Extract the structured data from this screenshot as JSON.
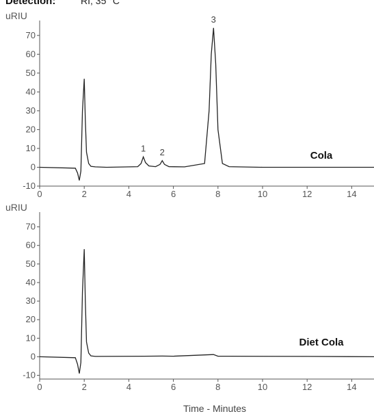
{
  "header": {
    "detection_label": "Detection:",
    "detection_value": "RI, 35 °C"
  },
  "chart_data": [
    {
      "type": "line",
      "sample_label": "Cola",
      "ylabel": "uRIU",
      "ylim": [
        -10,
        75
      ],
      "y_ticks": [
        -10,
        0,
        10,
        20,
        30,
        40,
        50,
        60,
        70
      ],
      "xlim": [
        0,
        15
      ],
      "x_ticks": [
        0,
        2,
        4,
        6,
        8,
        10,
        12,
        14
      ],
      "peak_labels": [
        {
          "label": "1",
          "x": 4.65,
          "y": 5.5
        },
        {
          "label": "2",
          "x": 5.5,
          "y": 3.5
        },
        {
          "label": "3",
          "x": 7.8,
          "y": 74
        }
      ],
      "series": [
        {
          "x": [
            0,
            1.6,
            1.7,
            1.78,
            1.85,
            1.92,
            2.0,
            2.05,
            2.1,
            2.2,
            2.3,
            2.5,
            3,
            4.4,
            4.55,
            4.65,
            4.75,
            4.9,
            5.2,
            5.4,
            5.5,
            5.6,
            5.8,
            6.5,
            7.4,
            7.6,
            7.7,
            7.8,
            7.9,
            8.0,
            8.2,
            8.5,
            10,
            15
          ],
          "y": [
            0,
            -0.5,
            -3,
            -7,
            -2,
            30,
            47,
            25,
            8,
            2,
            0.5,
            0.2,
            0,
            0.3,
            2,
            5.5,
            2.5,
            0.7,
            0.3,
            1.5,
            3.5,
            1.5,
            0.3,
            0.2,
            2,
            30,
            60,
            74,
            55,
            20,
            2,
            0.3,
            0,
            0
          ]
        }
      ]
    },
    {
      "type": "line",
      "sample_label": "Diet Cola",
      "ylabel": "uRIU",
      "ylim": [
        -12,
        75
      ],
      "y_ticks": [
        -10,
        0,
        10,
        20,
        30,
        40,
        50,
        60,
        70
      ],
      "xlim": [
        0,
        15
      ],
      "x_ticks": [
        0,
        2,
        4,
        6,
        8,
        10,
        12,
        14
      ],
      "xlabel": "Time - Minutes",
      "series": [
        {
          "x": [
            0,
            1.6,
            1.7,
            1.78,
            1.85,
            1.92,
            2.0,
            2.05,
            2.1,
            2.2,
            2.3,
            2.5,
            4.7,
            5.5,
            6.0,
            7.8,
            8.0,
            8.5,
            12,
            15
          ],
          "y": [
            0,
            -0.5,
            -4,
            -9,
            -3,
            35,
            58,
            30,
            8,
            2,
            0.5,
            0.2,
            0.3,
            0.4,
            0.3,
            1.2,
            0.3,
            0.3,
            0.2,
            0
          ]
        }
      ]
    }
  ]
}
